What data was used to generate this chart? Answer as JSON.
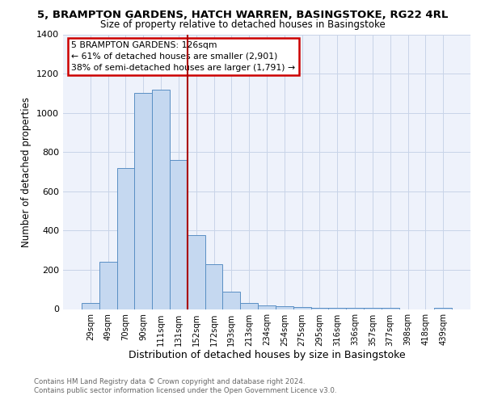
{
  "title": "5, BRAMPTON GARDENS, HATCH WARREN, BASINGSTOKE, RG22 4RL",
  "subtitle": "Size of property relative to detached houses in Basingstoke",
  "xlabel": "Distribution of detached houses by size in Basingstoke",
  "ylabel": "Number of detached properties",
  "bar_labels": [
    "29sqm",
    "49sqm",
    "70sqm",
    "90sqm",
    "111sqm",
    "131sqm",
    "152sqm",
    "172sqm",
    "193sqm",
    "213sqm",
    "234sqm",
    "254sqm",
    "275sqm",
    "295sqm",
    "316sqm",
    "336sqm",
    "357sqm",
    "377sqm",
    "398sqm",
    "418sqm",
    "439sqm"
  ],
  "bar_values": [
    30,
    240,
    720,
    1100,
    1120,
    760,
    375,
    230,
    90,
    30,
    20,
    15,
    10,
    5,
    5,
    5,
    5,
    5,
    0,
    0,
    5
  ],
  "bar_color": "#c5d8f0",
  "bar_edge_color": "#5a8fc4",
  "vline_color": "#aa0000",
  "annotation_line1": "5 BRAMPTON GARDENS: 126sqm",
  "annotation_line2": "← 61% of detached houses are smaller (2,901)",
  "annotation_line3": "38% of semi-detached houses are larger (1,791) →",
  "annotation_box_edge": "#cc0000",
  "ylim": [
    0,
    1400
  ],
  "yticks": [
    0,
    200,
    400,
    600,
    800,
    1000,
    1200,
    1400
  ],
  "footer1": "Contains HM Land Registry data © Crown copyright and database right 2024.",
  "footer2": "Contains public sector information licensed under the Open Government Licence v3.0.",
  "bg_color": "#eef2fb",
  "grid_color": "#c8d4e8",
  "title_fontsize": 9.5,
  "subtitle_fontsize": 8.5
}
